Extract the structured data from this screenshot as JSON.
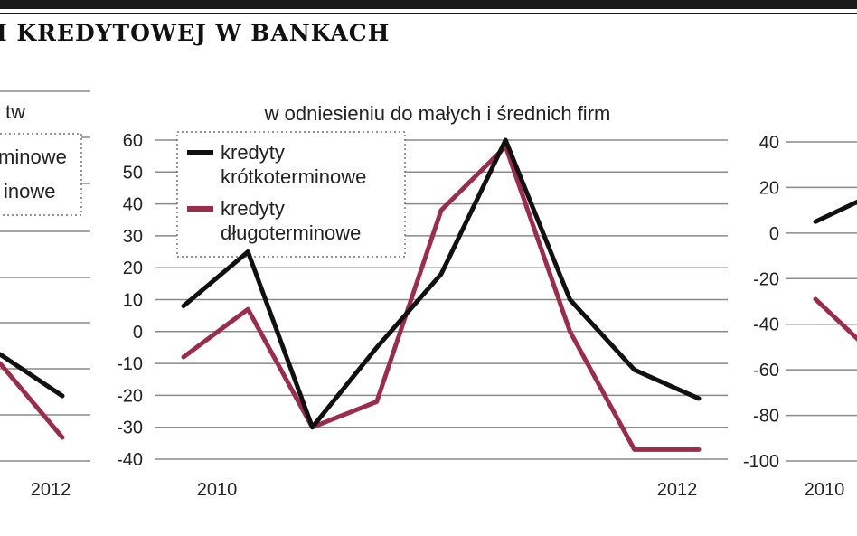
{
  "page": {
    "title": "I KREDYTOWEJ W BANKACH"
  },
  "legend": {
    "items": [
      {
        "label_lines": [
          "kredyty",
          "krótkoterminowe"
        ],
        "color": "#111111"
      },
      {
        "label_lines": [
          "kredyty",
          "długoterminowe"
        ],
        "color": "#9b2c4a"
      }
    ],
    "placement": "top-left"
  },
  "chart_data": [
    {
      "type": "line",
      "subtitle": "...tw",
      "legend_fragments": [
        "...minowe",
        "...inowe"
      ],
      "x_tick_labels": [
        "2012"
      ],
      "series": [
        {
          "name": "kredyty krótkoterminowe",
          "color": "#111111",
          "x": [
            0,
            1
          ],
          "y": [
            -5,
            -20
          ]
        },
        {
          "name": "kredyty długoterminowe",
          "color": "#9b2c4a",
          "x": [
            0,
            1
          ],
          "y": [
            -10,
            -33
          ]
        }
      ]
    },
    {
      "type": "line",
      "subtitle": "w odniesieniu do małych i średnich firm",
      "y_ticks": [
        60,
        50,
        40,
        30,
        20,
        10,
        0,
        -10,
        -20,
        -30,
        -40
      ],
      "ylim": [
        -40,
        60
      ],
      "x_tick_labels": [
        "2010",
        "2012"
      ],
      "grid": true,
      "series": [
        {
          "name": "kredyty krótkoterminowe",
          "color": "#111111",
          "x": [
            0,
            1,
            2,
            3,
            4,
            5,
            6,
            7,
            8
          ],
          "y": [
            8,
            25,
            -30,
            -5,
            18,
            60,
            10,
            -12,
            -21
          ]
        },
        {
          "name": "kredyty długoterminowe",
          "color": "#9b2c4a",
          "x": [
            0,
            1,
            2,
            3,
            4,
            5,
            6,
            7,
            8
          ],
          "y": [
            -8,
            7,
            -30,
            -22,
            38,
            58,
            0,
            -37,
            -37
          ]
        }
      ]
    },
    {
      "type": "line",
      "y_ticks": [
        40,
        20,
        0,
        -20,
        -40,
        -60,
        -80,
        -100
      ],
      "ylim": [
        -100,
        40
      ],
      "x_tick_labels": [
        "2010"
      ],
      "grid": true,
      "series": [
        {
          "name": "kredyty krótkoterminowe",
          "color": "#111111",
          "x": [
            0,
            1
          ],
          "y": [
            5,
            14
          ]
        },
        {
          "name": "kredyty długoterminowe",
          "color": "#9b2c4a",
          "x": [
            0,
            1
          ],
          "y": [
            -29,
            -47
          ]
        }
      ]
    }
  ]
}
